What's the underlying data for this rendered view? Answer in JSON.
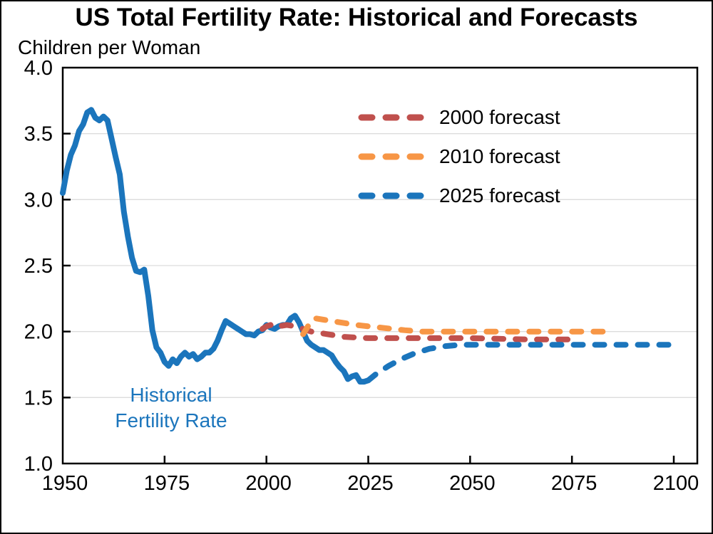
{
  "page": {
    "title": "US Total Fertility Rate: Historical and Forecasts",
    "y_axis_unit": "Children per Woman"
  },
  "annotation": {
    "line1": "Historical",
    "line2": "Fertility Rate",
    "color": "#1b75bc"
  },
  "legend": [
    {
      "label": "2000 forecast",
      "color": "#c0504d"
    },
    {
      "label": "2010 forecast",
      "color": "#f79646"
    },
    {
      "label": "2025 forecast",
      "color": "#1b75bc"
    }
  ],
  "chart_data": {
    "type": "line",
    "title": "US Total Fertility Rate: Historical and Forecasts",
    "ylabel": "Children per Woman",
    "xlabel": "",
    "xlim": [
      1950,
      2106
    ],
    "ylim": [
      1.0,
      4.0
    ],
    "x_ticks": [
      1950,
      1975,
      2000,
      2025,
      2050,
      2075,
      2100
    ],
    "y_ticks": [
      1.0,
      1.5,
      2.0,
      2.5,
      3.0,
      3.5,
      4.0
    ],
    "grid": "horizontal",
    "grid_color": "#dcdcdc",
    "axis_color": "#000000",
    "legend_position": "upper-center-right",
    "series": [
      {
        "name": "Historical Fertility Rate",
        "style": "solid",
        "color": "#1b75bc",
        "points": [
          [
            1950,
            3.05
          ],
          [
            1951,
            3.22
          ],
          [
            1952,
            3.34
          ],
          [
            1953,
            3.41
          ],
          [
            1954,
            3.52
          ],
          [
            1955,
            3.57
          ],
          [
            1956,
            3.66
          ],
          [
            1957,
            3.68
          ],
          [
            1958,
            3.62
          ],
          [
            1959,
            3.6
          ],
          [
            1960,
            3.63
          ],
          [
            1961,
            3.6
          ],
          [
            1962,
            3.46
          ],
          [
            1963,
            3.32
          ],
          [
            1964,
            3.19
          ],
          [
            1965,
            2.91
          ],
          [
            1966,
            2.72
          ],
          [
            1967,
            2.56
          ],
          [
            1968,
            2.46
          ],
          [
            1969,
            2.45
          ],
          [
            1970,
            2.47
          ],
          [
            1971,
            2.27
          ],
          [
            1972,
            2.01
          ],
          [
            1973,
            1.88
          ],
          [
            1974,
            1.84
          ],
          [
            1975,
            1.77
          ],
          [
            1976,
            1.74
          ],
          [
            1977,
            1.79
          ],
          [
            1978,
            1.76
          ],
          [
            1979,
            1.81
          ],
          [
            1980,
            1.84
          ],
          [
            1981,
            1.81
          ],
          [
            1982,
            1.83
          ],
          [
            1983,
            1.79
          ],
          [
            1984,
            1.81
          ],
          [
            1985,
            1.84
          ],
          [
            1986,
            1.84
          ],
          [
            1987,
            1.87
          ],
          [
            1988,
            1.93
          ],
          [
            1989,
            2.01
          ],
          [
            1990,
            2.08
          ],
          [
            1991,
            2.06
          ],
          [
            1992,
            2.04
          ],
          [
            1993,
            2.02
          ],
          [
            1994,
            2.0
          ],
          [
            1995,
            1.98
          ],
          [
            1996,
            1.98
          ],
          [
            1997,
            1.97
          ],
          [
            1998,
            2.0
          ],
          [
            1999,
            2.01
          ],
          [
            2000,
            2.05
          ],
          [
            2001,
            2.03
          ],
          [
            2002,
            2.02
          ],
          [
            2003,
            2.04
          ],
          [
            2004,
            2.05
          ],
          [
            2005,
            2.05
          ],
          [
            2006,
            2.1
          ],
          [
            2007,
            2.12
          ],
          [
            2008,
            2.07
          ],
          [
            2009,
            2.0
          ],
          [
            2010,
            1.93
          ],
          [
            2011,
            1.9
          ],
          [
            2012,
            1.88
          ],
          [
            2013,
            1.86
          ],
          [
            2014,
            1.86
          ],
          [
            2015,
            1.84
          ],
          [
            2016,
            1.82
          ],
          [
            2017,
            1.77
          ],
          [
            2018,
            1.73
          ],
          [
            2019,
            1.7
          ],
          [
            2020,
            1.64
          ],
          [
            2021,
            1.66
          ],
          [
            2022,
            1.67
          ],
          [
            2023,
            1.62
          ],
          [
            2024,
            1.62
          ],
          [
            2025,
            1.63
          ]
        ]
      },
      {
        "name": "2000 forecast",
        "style": "dashed",
        "color": "#c0504d",
        "points": [
          [
            1999,
            2.02
          ],
          [
            2000,
            2.04
          ],
          [
            2001,
            2.05
          ],
          [
            2002,
            2.03
          ],
          [
            2003,
            2.04
          ],
          [
            2005,
            2.05
          ],
          [
            2007,
            2.04
          ],
          [
            2009,
            2.02
          ],
          [
            2011,
            2.0
          ],
          [
            2013,
            1.99
          ],
          [
            2015,
            1.98
          ],
          [
            2017,
            1.97
          ],
          [
            2019,
            1.96
          ],
          [
            2022,
            1.955
          ],
          [
            2025,
            1.95
          ],
          [
            2035,
            1.95
          ],
          [
            2050,
            1.95
          ],
          [
            2065,
            1.94
          ],
          [
            2075,
            1.94
          ]
        ]
      },
      {
        "name": "2010 forecast",
        "style": "dashed",
        "color": "#f79646",
        "points": [
          [
            2009,
            1.98
          ],
          [
            2010,
            2.03
          ],
          [
            2011,
            2.08
          ],
          [
            2012,
            2.1
          ],
          [
            2014,
            2.09
          ],
          [
            2016,
            2.08
          ],
          [
            2018,
            2.07
          ],
          [
            2020,
            2.06
          ],
          [
            2022,
            2.05
          ],
          [
            2025,
            2.04
          ],
          [
            2028,
            2.03
          ],
          [
            2031,
            2.02
          ],
          [
            2034,
            2.01
          ],
          [
            2038,
            2.0
          ],
          [
            2050,
            2.0
          ],
          [
            2070,
            2.0
          ],
          [
            2085,
            2.0
          ]
        ]
      },
      {
        "name": "2025 forecast",
        "style": "dashed",
        "color": "#1b75bc",
        "points": [
          [
            2025,
            1.63
          ],
          [
            2027,
            1.68
          ],
          [
            2030,
            1.74
          ],
          [
            2033,
            1.79
          ],
          [
            2036,
            1.83
          ],
          [
            2040,
            1.87
          ],
          [
            2044,
            1.89
          ],
          [
            2048,
            1.9
          ],
          [
            2060,
            1.9
          ],
          [
            2080,
            1.9
          ],
          [
            2100,
            1.9
          ]
        ]
      }
    ]
  }
}
